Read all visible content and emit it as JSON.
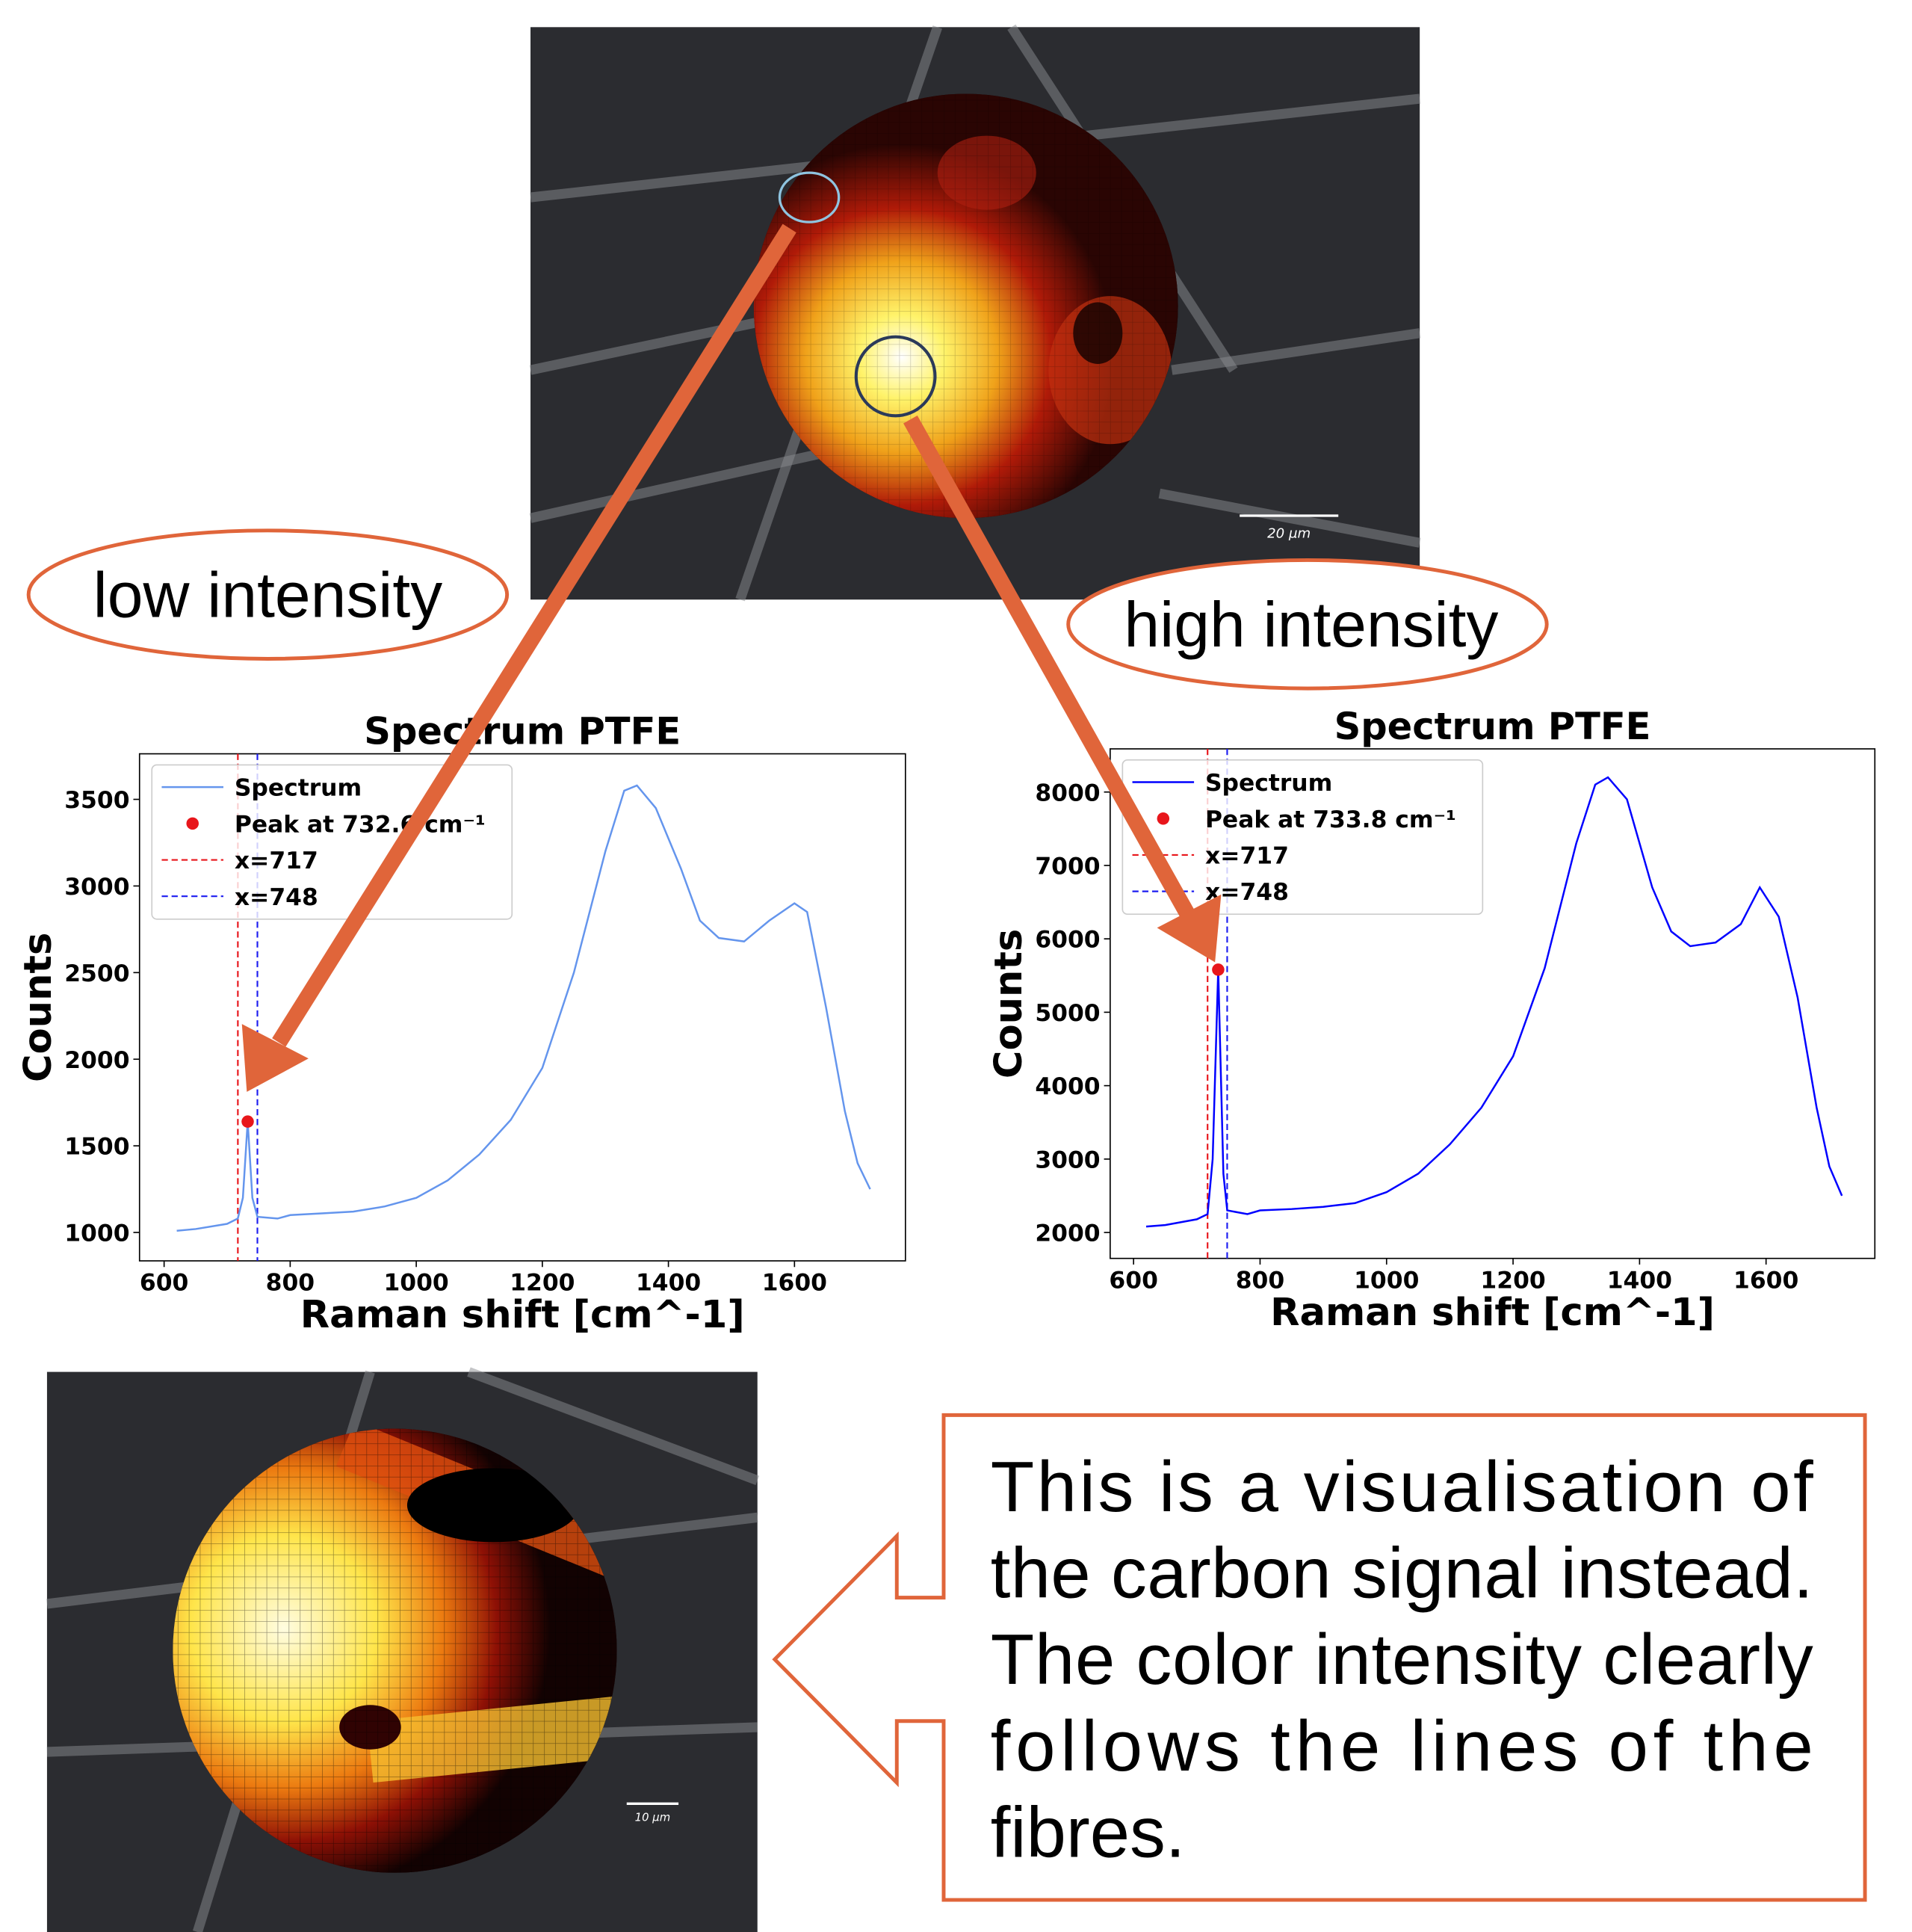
{
  "chart_data": [
    {
      "type": "line",
      "title": "Spectrum PTFE",
      "xlabel": "Raman shift [cm^-1]",
      "ylabel": "Counts",
      "x": [
        620,
        650,
        700,
        717,
        725,
        732.6,
        740,
        748,
        780,
        800,
        850,
        900,
        950,
        1000,
        1050,
        1100,
        1150,
        1200,
        1250,
        1300,
        1330,
        1350,
        1380,
        1420,
        1450,
        1480,
        1520,
        1560,
        1600,
        1620,
        1650,
        1680,
        1700,
        1720
      ],
      "series": [
        {
          "name": "Spectrum",
          "color": "#6495ed",
          "values": [
            1010,
            1020,
            1050,
            1080,
            1200,
            1640,
            1200,
            1090,
            1080,
            1100,
            1110,
            1120,
            1150,
            1200,
            1300,
            1450,
            1650,
            1950,
            2500,
            3200,
            3550,
            3580,
            3450,
            3100,
            2800,
            2700,
            2680,
            2800,
            2900,
            2850,
            2300,
            1700,
            1400,
            1250
          ]
        }
      ],
      "peak": {
        "x": 732.6,
        "y": 1640,
        "label": "Peak at 732.6 cm⁻¹",
        "color": "#e8161b"
      },
      "vlines": [
        {
          "x": 717,
          "label": "x=717",
          "color": "#e8161b"
        },
        {
          "x": 748,
          "label": "x=748",
          "color": "#1d1df0"
        }
      ],
      "xlim": [
        561,
        1776
      ],
      "ylim": [
        836,
        3763
      ],
      "xticks": [
        600,
        800,
        1000,
        1200,
        1400,
        1600
      ],
      "yticks": [
        1000,
        1500,
        2000,
        2500,
        3000,
        3500
      ]
    },
    {
      "type": "line",
      "title": "Spectrum PTFE",
      "xlabel": "Raman shift [cm^-1]",
      "ylabel": "Counts",
      "x": [
        620,
        650,
        700,
        717,
        725,
        733.8,
        742,
        748,
        780,
        800,
        850,
        900,
        950,
        1000,
        1050,
        1100,
        1150,
        1200,
        1250,
        1300,
        1330,
        1350,
        1380,
        1420,
        1450,
        1480,
        1520,
        1560,
        1590,
        1620,
        1650,
        1680,
        1700,
        1720
      ],
      "series": [
        {
          "name": "Spectrum",
          "color": "#0000ff",
          "values": [
            2080,
            2100,
            2180,
            2250,
            3000,
            5580,
            2800,
            2300,
            2250,
            2300,
            2320,
            2350,
            2400,
            2550,
            2800,
            3200,
            3700,
            4400,
            5600,
            7300,
            8100,
            8200,
            7900,
            6700,
            6100,
            5900,
            5950,
            6200,
            6700,
            6300,
            5200,
            3700,
            2900,
            2500
          ]
        }
      ],
      "peak": {
        "x": 733.8,
        "y": 5580,
        "label": "Peak at 733.8 cm⁻¹",
        "color": "#e8161b"
      },
      "vlines": [
        {
          "x": 717,
          "label": "x=717",
          "color": "#e8161b"
        },
        {
          "x": 748,
          "label": "x=748",
          "color": "#1d1df0"
        }
      ],
      "xlim": [
        563,
        1772
      ],
      "ylim": [
        1647,
        8588
      ],
      "xticks": [
        600,
        800,
        1000,
        1200,
        1400,
        1600
      ],
      "yticks": [
        2000,
        3000,
        4000,
        5000,
        6000,
        7000,
        8000
      ]
    }
  ],
  "callouts": {
    "low": "low intensity",
    "high": "high intensity"
  },
  "scale_bars": {
    "top": "20 µm",
    "bottom": "10 µm"
  },
  "textbox": {
    "lines": [
      "This is a visualisation of",
      "the carbon signal instead.",
      "The color intensity clearly",
      "follows the lines of the",
      "fibres."
    ]
  }
}
